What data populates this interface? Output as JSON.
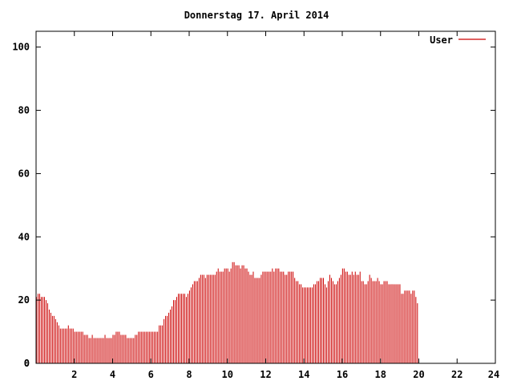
{
  "chart_data": {
    "type": "bar",
    "title": "Donnerstag 17. April 2014",
    "xlabel": "",
    "ylabel": "",
    "xlim": [
      0,
      24
    ],
    "ylim": [
      0,
      105
    ],
    "xticks": [
      2,
      4,
      6,
      8,
      10,
      12,
      14,
      16,
      18,
      20,
      22,
      24
    ],
    "yticks": [
      0,
      20,
      40,
      60,
      80,
      100
    ],
    "grid": false,
    "legend": "top-right",
    "bar_color": "#cc0000",
    "series": [
      {
        "name": "User",
        "x_start": 0,
        "x_step": 0.0833,
        "values": [
          21,
          22,
          22,
          21,
          21,
          21,
          20,
          19,
          17,
          16,
          15,
          15,
          14,
          13,
          12,
          11,
          11,
          11,
          11,
          11,
          12,
          11,
          11,
          11,
          10,
          10,
          10,
          10,
          10,
          10,
          9,
          9,
          9,
          8,
          8,
          9,
          8,
          8,
          8,
          8,
          8,
          8,
          8,
          9,
          8,
          8,
          8,
          8,
          9,
          9,
          10,
          10,
          10,
          9,
          9,
          9,
          9,
          8,
          8,
          8,
          8,
          8,
          9,
          9,
          10,
          10,
          10,
          10,
          10,
          10,
          10,
          10,
          10,
          10,
          10,
          10,
          10,
          12,
          12,
          12,
          14,
          15,
          15,
          16,
          17,
          18,
          20,
          20,
          21,
          22,
          22,
          22,
          22,
          22,
          21,
          22,
          23,
          24,
          25,
          26,
          26,
          26,
          27,
          28,
          28,
          28,
          27,
          28,
          28,
          28,
          28,
          28,
          28,
          29,
          30,
          29,
          29,
          29,
          30,
          30,
          30,
          29,
          30,
          32,
          32,
          31,
          31,
          31,
          30,
          31,
          31,
          30,
          30,
          29,
          28,
          28,
          29,
          27,
          27,
          27,
          27,
          28,
          29,
          29,
          29,
          29,
          29,
          29,
          30,
          29,
          30,
          30,
          30,
          29,
          29,
          29,
          28,
          28,
          29,
          29,
          29,
          29,
          27,
          26,
          26,
          25,
          25,
          24,
          24,
          24,
          24,
          24,
          24,
          24,
          25,
          25,
          26,
          26,
          27,
          27,
          27,
          25,
          24,
          26,
          28,
          27,
          26,
          25,
          25,
          26,
          27,
          28,
          30,
          30,
          29,
          29,
          28,
          28,
          29,
          28,
          29,
          28,
          28,
          29,
          26,
          26,
          25,
          25,
          26,
          28,
          27,
          26,
          26,
          26,
          27,
          26,
          25,
          25,
          26,
          26,
          26,
          25,
          25,
          25,
          25,
          25,
          25,
          25,
          25,
          22,
          22,
          23,
          23,
          23,
          23,
          22,
          23,
          23,
          21,
          19
        ]
      }
    ]
  }
}
